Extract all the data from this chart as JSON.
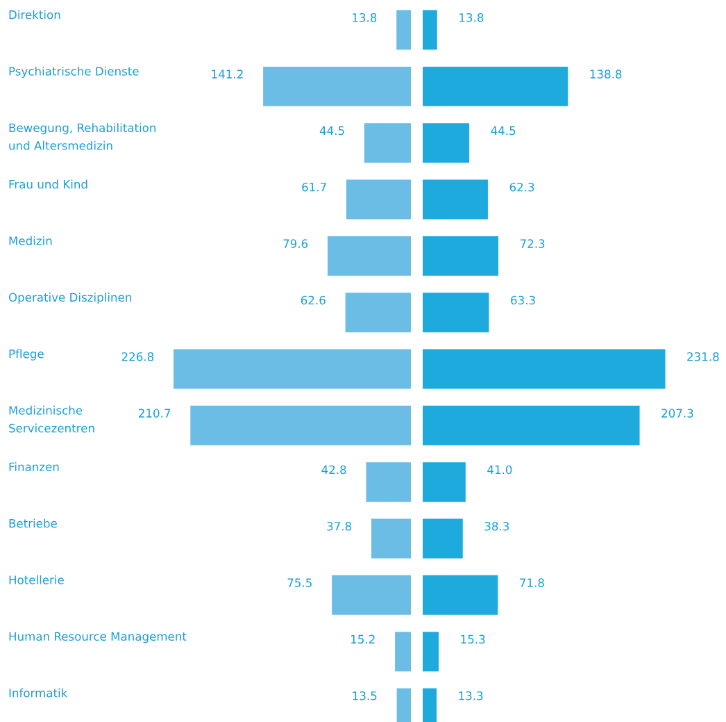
{
  "chart_data": [
    {
      "type": "bar",
      "orientation": "horizontal",
      "categories": [
        "Direktion",
        "Psychiatrische Dienste",
        "Bewegung, Rehabilitation\nund Altersmedizin",
        "Frau und Kind",
        "Medizin",
        "Operative Disziplinen",
        "Pflege",
        "Medizinische\nServicezentren",
        "Finanzen",
        "Betriebe",
        "Hotellerie",
        "Human Resource Management",
        "Informatik"
      ],
      "series": [
        {
          "color": "#6bbde6",
          "values": [
            13.8,
            141.2,
            44.5,
            61.7,
            79.6,
            62.6,
            226.8,
            210.7,
            42.8,
            37.8,
            75.5,
            15.2,
            13.5
          ],
          "value_labels": [
            "13.8",
            "141.2",
            "44.5",
            "61.7",
            "79.6",
            "62.6",
            "226.8",
            "210.7",
            "42.8",
            "37.8",
            "75.5",
            "15.2",
            "13.5"
          ]
        }
      ]
    },
    {
      "type": "bar",
      "orientation": "horizontal",
      "categories": [
        null,
        null,
        null,
        null,
        null,
        null,
        null,
        null,
        null,
        null,
        null,
        null,
        null
      ],
      "series": [
        {
          "color": "#1eaadd",
          "values": [
            13.8,
            138.8,
            44.5,
            62.3,
            72.3,
            63.3,
            231.8,
            207.3,
            41.0,
            38.3,
            71.8,
            15.3,
            13.3
          ],
          "value_labels": [
            "13.8",
            "138.8",
            "44.5",
            "62.3",
            "72.3",
            "63.3",
            "231.8",
            "207.3",
            "41.0",
            "38.3",
            "71.8",
            "15.3",
            "13.3"
          ]
        }
      ]
    }
  ]
}
